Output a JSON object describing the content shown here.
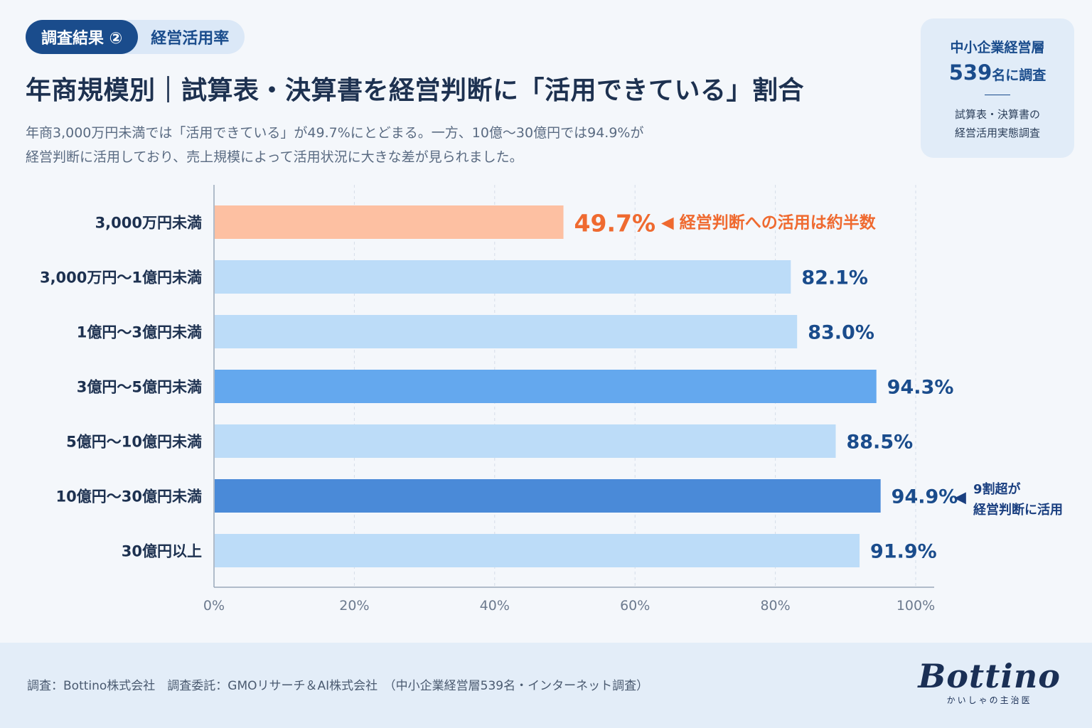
{
  "badge": {
    "number_label": "調査結果 ②",
    "topic_label": "経営活用率"
  },
  "title": "年商規模別｜試算表・決算書を経営判断に「活用できている」割合",
  "subtitle_line1": "年商3,000万円未満では「活用できている」が49.7%にとどまる。一方、10億〜30億円では94.9%が",
  "subtitle_line2": "経営判断に活用しており、売上規模によって活用状況に大きな差が見られました。",
  "info_box": {
    "line1": "中小企業経営層",
    "count": "539",
    "count_suffix": "名に調査",
    "line3a": "試算表・決算書の",
    "line3b": "経営活用実態調査"
  },
  "footer": {
    "source": "調査：Bottino株式会社　調査委託：GMOリサーチ＆AI株式会社　（中小企業経営層539名・インターネット調査）",
    "logo": "Bottino",
    "logo_tagline": "かいしゃの主治医"
  },
  "colors": {
    "bar_default": "#bcdcf8",
    "bar_mid": "#64a8ee",
    "bar_dark": "#4a8ad8",
    "bar_highlight": "#fdc0a2",
    "label_blue": "#1a4c8c",
    "label_orange": "#ef6a30"
  },
  "chart_data": {
    "type": "bar",
    "orientation": "horizontal",
    "categories": [
      "3,000万円未満",
      "3,000万円〜1億円未満",
      "1億円〜3億円未満",
      "3億円〜5億円未満",
      "5億円〜10億円未満",
      "10億円〜30億円未満",
      "30億円以上"
    ],
    "values": [
      49.7,
      82.1,
      83.0,
      94.3,
      88.5,
      94.9,
      91.9
    ],
    "value_labels": [
      "49.7%",
      "82.1%",
      "83.0%",
      "94.3%",
      "88.5%",
      "94.9%",
      "91.9%"
    ],
    "bar_styles": [
      "highlight",
      "default",
      "default",
      "mid",
      "default",
      "dark",
      "default"
    ],
    "xlim": [
      0,
      100
    ],
    "xticks": [
      "0%",
      "20%",
      "40%",
      "60%",
      "80%",
      "100%"
    ],
    "grid": true,
    "annotations": [
      {
        "category_index": 0,
        "text": "◀ 経営判断への活用は約半数",
        "color": "orange"
      },
      {
        "category_index": 5,
        "arrow": "◀",
        "text_line1": "9割超が",
        "text_line2": "経営判断に活用",
        "color": "blue"
      }
    ]
  }
}
